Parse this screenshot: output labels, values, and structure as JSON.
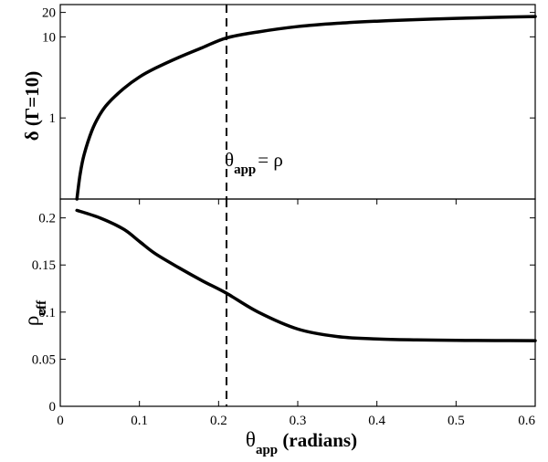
{
  "chart_data": [
    {
      "type": "line",
      "panel": "top",
      "ylabel": "δ (Γ=10)",
      "yscale": "log",
      "ylim": [
        0.1,
        25
      ],
      "xlim": [
        0,
        0.6
      ],
      "yticks": [
        1,
        10,
        20
      ],
      "ytick_labels": [
        "1",
        "10",
        "20"
      ],
      "series": [
        {
          "x": [
            0.021,
            0.025,
            0.03,
            0.04,
            0.05,
            0.06,
            0.08,
            0.1,
            0.12,
            0.15,
            0.18,
            0.21,
            0.25,
            0.3,
            0.35,
            0.4,
            0.45,
            0.5,
            0.55,
            0.6
          ],
          "values": [
            0.1,
            0.2,
            0.35,
            0.7,
            1.1,
            1.5,
            2.3,
            3.2,
            4.1,
            5.6,
            7.4,
            9.7,
            11.5,
            13.4,
            14.7,
            15.6,
            16.3,
            16.9,
            17.4,
            17.8
          ]
        }
      ]
    },
    {
      "type": "line",
      "panel": "bottom",
      "xlabel": "θapp (radians)",
      "ylabel": "ρeff",
      "xlim": [
        0,
        0.6
      ],
      "ylim": [
        0,
        0.22
      ],
      "xticks": [
        0,
        0.1,
        0.2,
        0.3,
        0.4,
        0.5,
        0.6
      ],
      "xtick_labels": [
        "0",
        "0.1",
        "0.2",
        "0.3",
        "0.4",
        "0.5",
        "0.6"
      ],
      "yticks": [
        0,
        0.05,
        0.1,
        0.15,
        0.2
      ],
      "ytick_labels": [
        "0",
        "0.05",
        "0.1",
        "0.15",
        "0.2"
      ],
      "series": [
        {
          "x": [
            0.021,
            0.05,
            0.08,
            0.1,
            0.12,
            0.15,
            0.18,
            0.21,
            0.25,
            0.3,
            0.35,
            0.4,
            0.45,
            0.5,
            0.55,
            0.6
          ],
          "values": [
            0.208,
            0.2,
            0.188,
            0.175,
            0.162,
            0.147,
            0.133,
            0.12,
            0.1,
            0.082,
            0.074,
            0.0715,
            0.0705,
            0.07,
            0.0698,
            0.0697
          ]
        }
      ]
    }
  ],
  "annotation": {
    "vline_x": 0.21,
    "theta_symbol": "θ",
    "theta_sub": "app",
    "rest": "= ρ"
  },
  "labels": {
    "delta_label": "δ (Γ=10)",
    "rho_main": "ρ",
    "rho_sub": "eff",
    "x_theta": "θ",
    "x_sub": "app",
    "x_units": " (radians)"
  }
}
